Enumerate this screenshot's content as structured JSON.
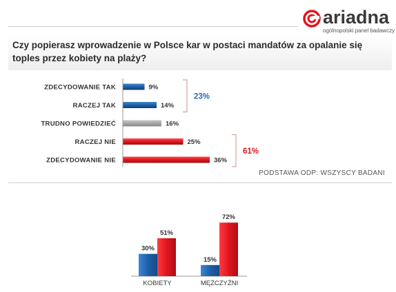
{
  "logo": {
    "name": "ariadna",
    "tagline": "ogólnopolski panel badawczy"
  },
  "question": "Czy popierasz wprowadzenie w Polsce kar w postaci mandatów za opalanie się toples przez kobiety na plaży?",
  "basis": "PODSTAWA ODP: WSZYSCY BADANI",
  "colors": {
    "blue": "#1f5fa8",
    "gray": "#a6a6a6",
    "red": "#e0161e",
    "sum_blue": "#2b6cb3",
    "sum_red": "#e0161e"
  },
  "chart_data": [
    {
      "type": "bar",
      "orientation": "horizontal",
      "categories": [
        "ZDECYDOWANIE TAK",
        "RACZEJ TAK",
        "TRUDNO POWIEDZIEĆ",
        "RACZEJ NIE",
        "ZDECYDOWANIE NIE"
      ],
      "values": [
        9,
        14,
        16,
        25,
        36
      ],
      "value_labels": [
        "9%",
        "14%",
        "16%",
        "25%",
        "36%"
      ],
      "bar_colors": [
        "blue",
        "blue",
        "gray",
        "red",
        "red"
      ],
      "groups": [
        {
          "label": "23%",
          "color": "blue",
          "covers": [
            0,
            1
          ]
        },
        {
          "label": "61%",
          "color": "red",
          "covers": [
            3,
            4
          ]
        }
      ]
    },
    {
      "type": "bar",
      "categories": [
        "KOBIETY",
        "MĘŻCZYŹNI"
      ],
      "series": [
        {
          "color": "blue",
          "values": [
            30,
            15
          ],
          "value_labels": [
            "30%",
            "15%"
          ]
        },
        {
          "color": "red",
          "values": [
            51,
            72
          ],
          "value_labels": [
            "51%",
            "72%"
          ]
        }
      ]
    }
  ]
}
